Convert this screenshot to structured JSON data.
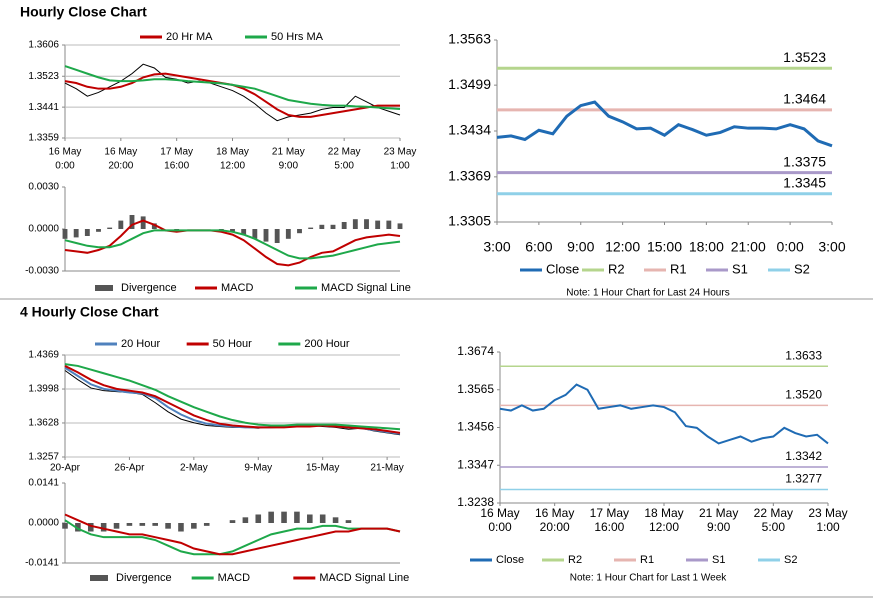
{
  "sections": [
    "Hourly Close Chart",
    "4 Hourly Close Chart"
  ],
  "chart_data": [
    {
      "type": "line",
      "grid": true,
      "legend": "top",
      "ylim": [
        1.3359,
        1.3606
      ],
      "yticks": [
        1.3359,
        1.3441,
        1.3523,
        1.3606
      ],
      "categories": [
        [
          "16 May",
          "0:00"
        ],
        null,
        null,
        null,
        null,
        [
          "16 May",
          "20:00"
        ],
        null,
        null,
        null,
        null,
        [
          "17 May",
          "16:00"
        ],
        null,
        null,
        null,
        null,
        [
          "18 May",
          "12:00"
        ],
        null,
        null,
        null,
        null,
        [
          "21 May",
          "9:00"
        ],
        null,
        null,
        null,
        null,
        [
          "22 May",
          "5:00"
        ],
        null,
        null,
        null,
        null,
        [
          "23 May",
          "1:00"
        ]
      ],
      "series": [
        {
          "color": "#000000",
          "values": [
            1.3505,
            1.349,
            1.347,
            1.348,
            1.3495,
            1.351,
            1.353,
            1.3555,
            1.3545,
            1.352,
            1.3515,
            1.3505,
            1.351,
            1.3505,
            1.3495,
            1.3485,
            1.347,
            1.345,
            1.3425,
            1.3405,
            1.3415,
            1.342,
            1.3425,
            1.3435,
            1.344,
            1.344,
            1.347,
            1.3455,
            1.344,
            1.343,
            1.342
          ]
        },
        {
          "name": "20 Hr MA",
          "color": "#c00000",
          "values": [
            1.351,
            1.3505,
            1.3495,
            1.349,
            1.349,
            1.3495,
            1.3505,
            1.352,
            1.3528,
            1.353,
            1.3525,
            1.352,
            1.3515,
            1.351,
            1.3505,
            1.35,
            1.349,
            1.3475,
            1.3455,
            1.3435,
            1.342,
            1.3415,
            1.3415,
            1.342,
            1.3425,
            1.343,
            1.3435,
            1.344,
            1.3445,
            1.3445,
            1.3445
          ]
        },
        {
          "name": "50 Hrs MA",
          "color": "#1ea84a",
          "values": [
            1.355,
            1.354,
            1.353,
            1.352,
            1.3512,
            1.351,
            1.351,
            1.3512,
            1.3515,
            1.3515,
            1.3513,
            1.351,
            1.3508,
            1.3506,
            1.3504,
            1.35,
            1.3495,
            1.349,
            1.348,
            1.347,
            1.346,
            1.3455,
            1.345,
            1.3447,
            1.3445,
            1.3445,
            1.3443,
            1.3442,
            1.344,
            1.3438,
            1.3436
          ]
        }
      ]
    },
    {
      "type": "line",
      "grid": false,
      "legend": "bottom",
      "ylim": [
        -0.003,
        0.003
      ],
      "yticks": [
        {
          "value": -0.003,
          "label": "-0.0030"
        },
        {
          "value": 0,
          "label": "0.0000"
        },
        {
          "value": 0.003,
          "label": "0.0030"
        }
      ],
      "series": [
        {
          "name": "Divergence",
          "type": "bar",
          "color": "#555555",
          "values": [
            -0.0007,
            -0.0006,
            -0.0005,
            -0.0002,
            0.0001,
            0.0006,
            0.001,
            0.0009,
            0.0004,
            0,
            -0.0001,
            0,
            0,
            0,
            -0.0001,
            -0.0002,
            -0.0004,
            -0.0007,
            -0.0009,
            -0.001,
            -0.0007,
            -0.0003,
            0.0001,
            0.0003,
            0.0003,
            0.0005,
            0.0007,
            0.0007,
            0.0006,
            0.0006,
            0.0004
          ]
        },
        {
          "name": "MACD",
          "color": "#c00000",
          "values": [
            -0.0015,
            -0.0016,
            -0.0017,
            -0.0015,
            -0.0012,
            -0.0005,
            0.0003,
            0.0006,
            0.0003,
            -0.0001,
            -0.0002,
            -0.0001,
            -0.0001,
            -0.0001,
            -0.0002,
            -0.0004,
            -0.0008,
            -0.0014,
            -0.002,
            -0.0025,
            -0.0026,
            -0.0024,
            -0.002,
            -0.0017,
            -0.0016,
            -0.0012,
            -0.0008,
            -0.0006,
            -0.0005,
            -0.0004,
            -0.0005
          ]
        },
        {
          "name": "MACD Signal Line",
          "color": "#1ea84a",
          "values": [
            -0.0008,
            -0.001,
            -0.0012,
            -0.0013,
            -0.0013,
            -0.0011,
            -0.0007,
            -0.0003,
            -0.0001,
            -0.0001,
            -0.0001,
            -0.0001,
            -0.0001,
            -0.0001,
            -0.0001,
            -0.0002,
            -0.0004,
            -0.0007,
            -0.0011,
            -0.0015,
            -0.0019,
            -0.0021,
            -0.0021,
            -0.002,
            -0.0019,
            -0.0017,
            -0.0015,
            -0.0013,
            -0.0011,
            -0.001,
            -0.0009
          ]
        }
      ]
    },
    {
      "type": "line",
      "grid": false,
      "legend": "bottom",
      "note": "Note: 1 Hour Chart for Last 24 Hours",
      "ylim": [
        1.3305,
        1.3563
      ],
      "yticks": [
        1.3305,
        1.3369,
        1.3434,
        1.3499,
        1.3563
      ],
      "categories": [
        "3:00",
        null,
        null,
        "6:00",
        null,
        null,
        "9:00",
        null,
        null,
        "12:00",
        null,
        null,
        "15:00",
        null,
        null,
        "18:00",
        null,
        null,
        "21:00",
        null,
        null,
        "0:00",
        null,
        null,
        "3:00"
      ],
      "series": [
        {
          "name": "Close",
          "color": "#1f6bb4",
          "values": [
            1.3425,
            1.3427,
            1.3422,
            1.3435,
            1.343,
            1.3455,
            1.347,
            1.3475,
            1.3455,
            1.3447,
            1.3437,
            1.3438,
            1.3428,
            1.3443,
            1.3436,
            1.3428,
            1.3432,
            1.344,
            1.3438,
            1.3438,
            1.3437,
            1.3443,
            1.3437,
            1.342,
            1.3413
          ]
        }
      ],
      "levels": [
        {
          "name": "R2",
          "value": 1.3523,
          "color": "#b5d58d"
        },
        {
          "name": "R1",
          "value": 1.3464,
          "color": "#e6b5b0"
        },
        {
          "name": "S1",
          "value": 1.3375,
          "color": "#a999c9"
        },
        {
          "name": "S2",
          "value": 1.3345,
          "color": "#8fd0e8"
        }
      ]
    },
    {
      "type": "line",
      "grid": true,
      "legend": "top",
      "ylim": [
        1.3257,
        1.4369
      ],
      "yticks": [
        1.3257,
        1.3628,
        1.3998,
        1.4369
      ],
      "categories": [
        "20-Apr",
        null,
        null,
        null,
        null,
        "26-Apr",
        null,
        null,
        null,
        null,
        "2-May",
        null,
        null,
        null,
        null,
        "9-May",
        null,
        null,
        null,
        null,
        "15-May",
        null,
        null,
        null,
        null,
        "21-May",
        null
      ],
      "series": [
        {
          "color": "#000000",
          "values": [
            1.42,
            1.41,
            1.401,
            1.398,
            1.397,
            1.396,
            1.394,
            1.385,
            1.375,
            1.367,
            1.363,
            1.36,
            1.359,
            1.358,
            1.358,
            1.357,
            1.359,
            1.36,
            1.361,
            1.36,
            1.359,
            1.358,
            1.356,
            1.357,
            1.354,
            1.352,
            1.35
          ]
        },
        {
          "name": "20 Hour",
          "color": "#4f81bd",
          "values": [
            1.423,
            1.414,
            1.405,
            1.4,
            1.398,
            1.396,
            1.395,
            1.39,
            1.38,
            1.372,
            1.366,
            1.362,
            1.36,
            1.359,
            1.358,
            1.358,
            1.358,
            1.359,
            1.36,
            1.36,
            1.36,
            1.359,
            1.358,
            1.357,
            1.355,
            1.353,
            1.351
          ]
        },
        {
          "name": "50 Hour",
          "color": "#c00000",
          "values": [
            1.425,
            1.418,
            1.41,
            1.404,
            1.4,
            1.398,
            1.396,
            1.392,
            1.385,
            1.378,
            1.371,
            1.366,
            1.362,
            1.36,
            1.359,
            1.358,
            1.358,
            1.358,
            1.359,
            1.359,
            1.36,
            1.359,
            1.358,
            1.357,
            1.356,
            1.354,
            1.352
          ]
        },
        {
          "name": "200 Hour",
          "color": "#1ea84a",
          "values": [
            1.427,
            1.425,
            1.421,
            1.417,
            1.413,
            1.409,
            1.404,
            1.399,
            1.392,
            1.386,
            1.38,
            1.375,
            1.37,
            1.366,
            1.363,
            1.361,
            1.36,
            1.36,
            1.361,
            1.361,
            1.361,
            1.361,
            1.36,
            1.359,
            1.358,
            1.357,
            1.356
          ]
        }
      ]
    },
    {
      "type": "line",
      "grid": false,
      "legend": "bottom",
      "ylim": [
        -0.0141,
        0.0141
      ],
      "yticks": [
        {
          "value": -0.0141,
          "label": "-0.0141"
        },
        {
          "value": 0,
          "label": "0.0000"
        },
        0.0141
      ],
      "series": [
        {
          "name": "Divergence",
          "type": "bar",
          "color": "#555555",
          "values": [
            -0.002,
            -0.003,
            -0.003,
            -0.003,
            -0.002,
            -0.001,
            -0.001,
            -0.001,
            -0.002,
            -0.003,
            -0.002,
            -0.001,
            0,
            0.001,
            0.002,
            0.003,
            0.004,
            0.004,
            0.004,
            0.003,
            0.003,
            0.002,
            0.001,
            0,
            0,
            0,
            0
          ]
        },
        {
          "name": "MACD",
          "color": "#1ea84a",
          "values": [
            0.001,
            -0.002,
            -0.004,
            -0.005,
            -0.005,
            -0.005,
            -0.005,
            -0.006,
            -0.008,
            -0.01,
            -0.011,
            -0.011,
            -0.011,
            -0.01,
            -0.008,
            -0.006,
            -0.004,
            -0.003,
            -0.002,
            -0.002,
            -0.001,
            -0.001,
            -0.002,
            -0.002,
            -0.002,
            -0.002,
            -0.003
          ]
        },
        {
          "name": "MACD Signal Line",
          "color": "#c00000",
          "values": [
            0.003,
            0.001,
            -0.001,
            -0.002,
            -0.003,
            -0.004,
            -0.004,
            -0.005,
            -0.006,
            -0.007,
            -0.009,
            -0.01,
            -0.011,
            -0.011,
            -0.01,
            -0.009,
            -0.008,
            -0.007,
            -0.006,
            -0.005,
            -0.004,
            -0.003,
            -0.003,
            -0.002,
            -0.002,
            -0.002,
            -0.003
          ]
        }
      ]
    },
    {
      "type": "line",
      "grid": false,
      "legend": "bottom",
      "note": "Note: 1 Hour Chart for Last 1 Week",
      "ylim": [
        1.3238,
        1.3674
      ],
      "yticks": [
        1.3238,
        1.3347,
        1.3456,
        1.3565,
        1.3674
      ],
      "categories": [
        [
          "16 May",
          "0:00"
        ],
        null,
        null,
        null,
        null,
        [
          "16 May",
          "20:00"
        ],
        null,
        null,
        null,
        null,
        [
          "17 May",
          "16:00"
        ],
        null,
        null,
        null,
        null,
        [
          "18 May",
          "12:00"
        ],
        null,
        null,
        null,
        null,
        [
          "21 May",
          "9:00"
        ],
        null,
        null,
        null,
        null,
        [
          "22 May",
          "5:00"
        ],
        null,
        null,
        null,
        null,
        [
          "23 May",
          "1:00"
        ]
      ],
      "series": [
        {
          "name": "Close",
          "color": "#1f6bb4",
          "values": [
            1.351,
            1.3505,
            1.352,
            1.3505,
            1.351,
            1.3535,
            1.355,
            1.358,
            1.3565,
            1.351,
            1.3515,
            1.352,
            1.351,
            1.3515,
            1.352,
            1.3515,
            1.35,
            1.346,
            1.3455,
            1.343,
            1.341,
            1.342,
            1.343,
            1.3415,
            1.3425,
            1.343,
            1.3455,
            1.344,
            1.343,
            1.3435,
            1.341
          ]
        }
      ],
      "levels": [
        {
          "name": "R2",
          "value": 1.3633,
          "color": "#b5d58d"
        },
        {
          "name": "R1",
          "value": 1.352,
          "label": "1.3520",
          "color": "#e6b5b0"
        },
        {
          "name": "S1",
          "value": 1.3342,
          "color": "#a999c9"
        },
        {
          "name": "S2",
          "value": 1.3277,
          "color": "#8fd0e8"
        }
      ]
    }
  ]
}
